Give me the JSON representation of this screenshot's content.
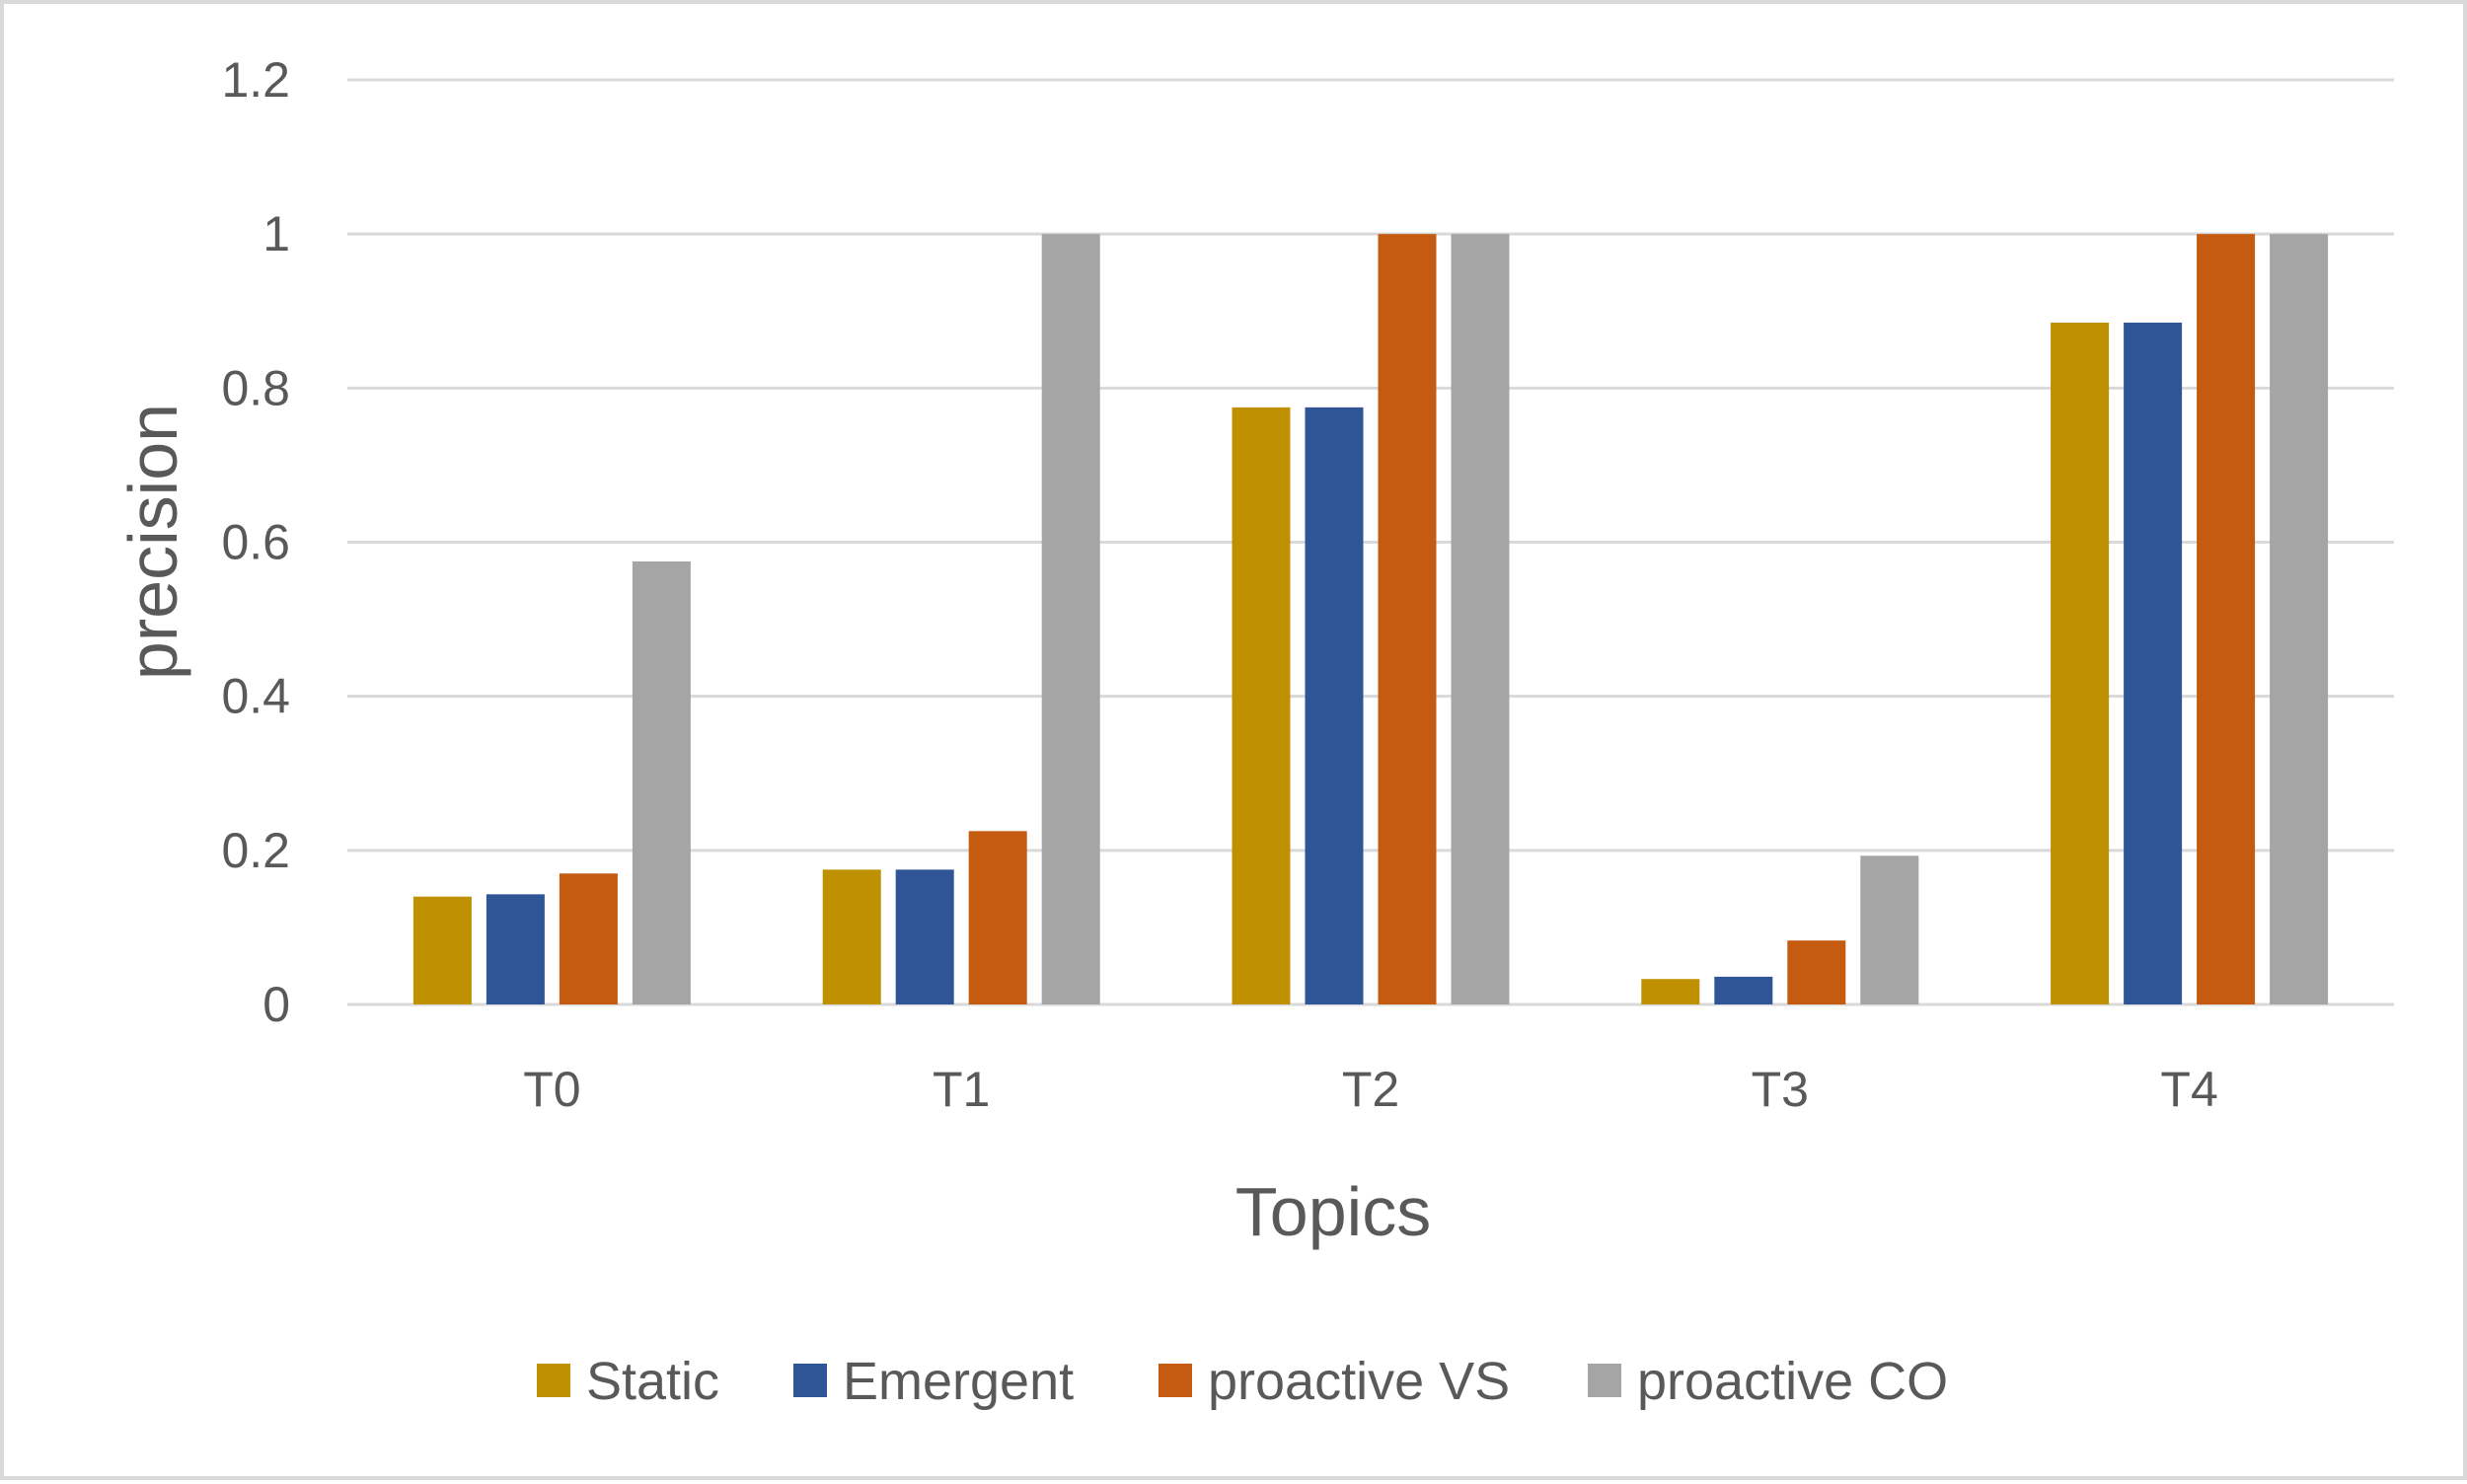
{
  "chart_data": {
    "type": "bar",
    "title": "",
    "xlabel": "Topics",
    "ylabel": "precision",
    "categories": [
      "T0",
      "T1",
      "T2",
      "T3",
      "T4"
    ],
    "ylim": [
      0,
      1.2
    ],
    "yticks": [
      0,
      0.2,
      0.4,
      0.6,
      0.8,
      1,
      1.2
    ],
    "ytick_labels": [
      "0",
      "0.2",
      "0.4",
      "0.6",
      "0.8",
      "1",
      "1.2"
    ],
    "grid": true,
    "legend_position": "bottom",
    "series": [
      {
        "name": "Static",
        "color": "#BF9000",
        "values": [
          0.14,
          0.175,
          0.775,
          0.033,
          0.885
        ]
      },
      {
        "name": "Emergent",
        "color": "#2F5597",
        "values": [
          0.143,
          0.175,
          0.775,
          0.036,
          0.885
        ]
      },
      {
        "name": "proactive VS",
        "color": "#C55A11",
        "values": [
          0.17,
          0.225,
          1.0,
          0.083,
          1.0
        ]
      },
      {
        "name": "proactive CO",
        "color": "#A5A5A5",
        "values": [
          0.575,
          1.0,
          1.0,
          0.193,
          1.0
        ]
      }
    ]
  }
}
